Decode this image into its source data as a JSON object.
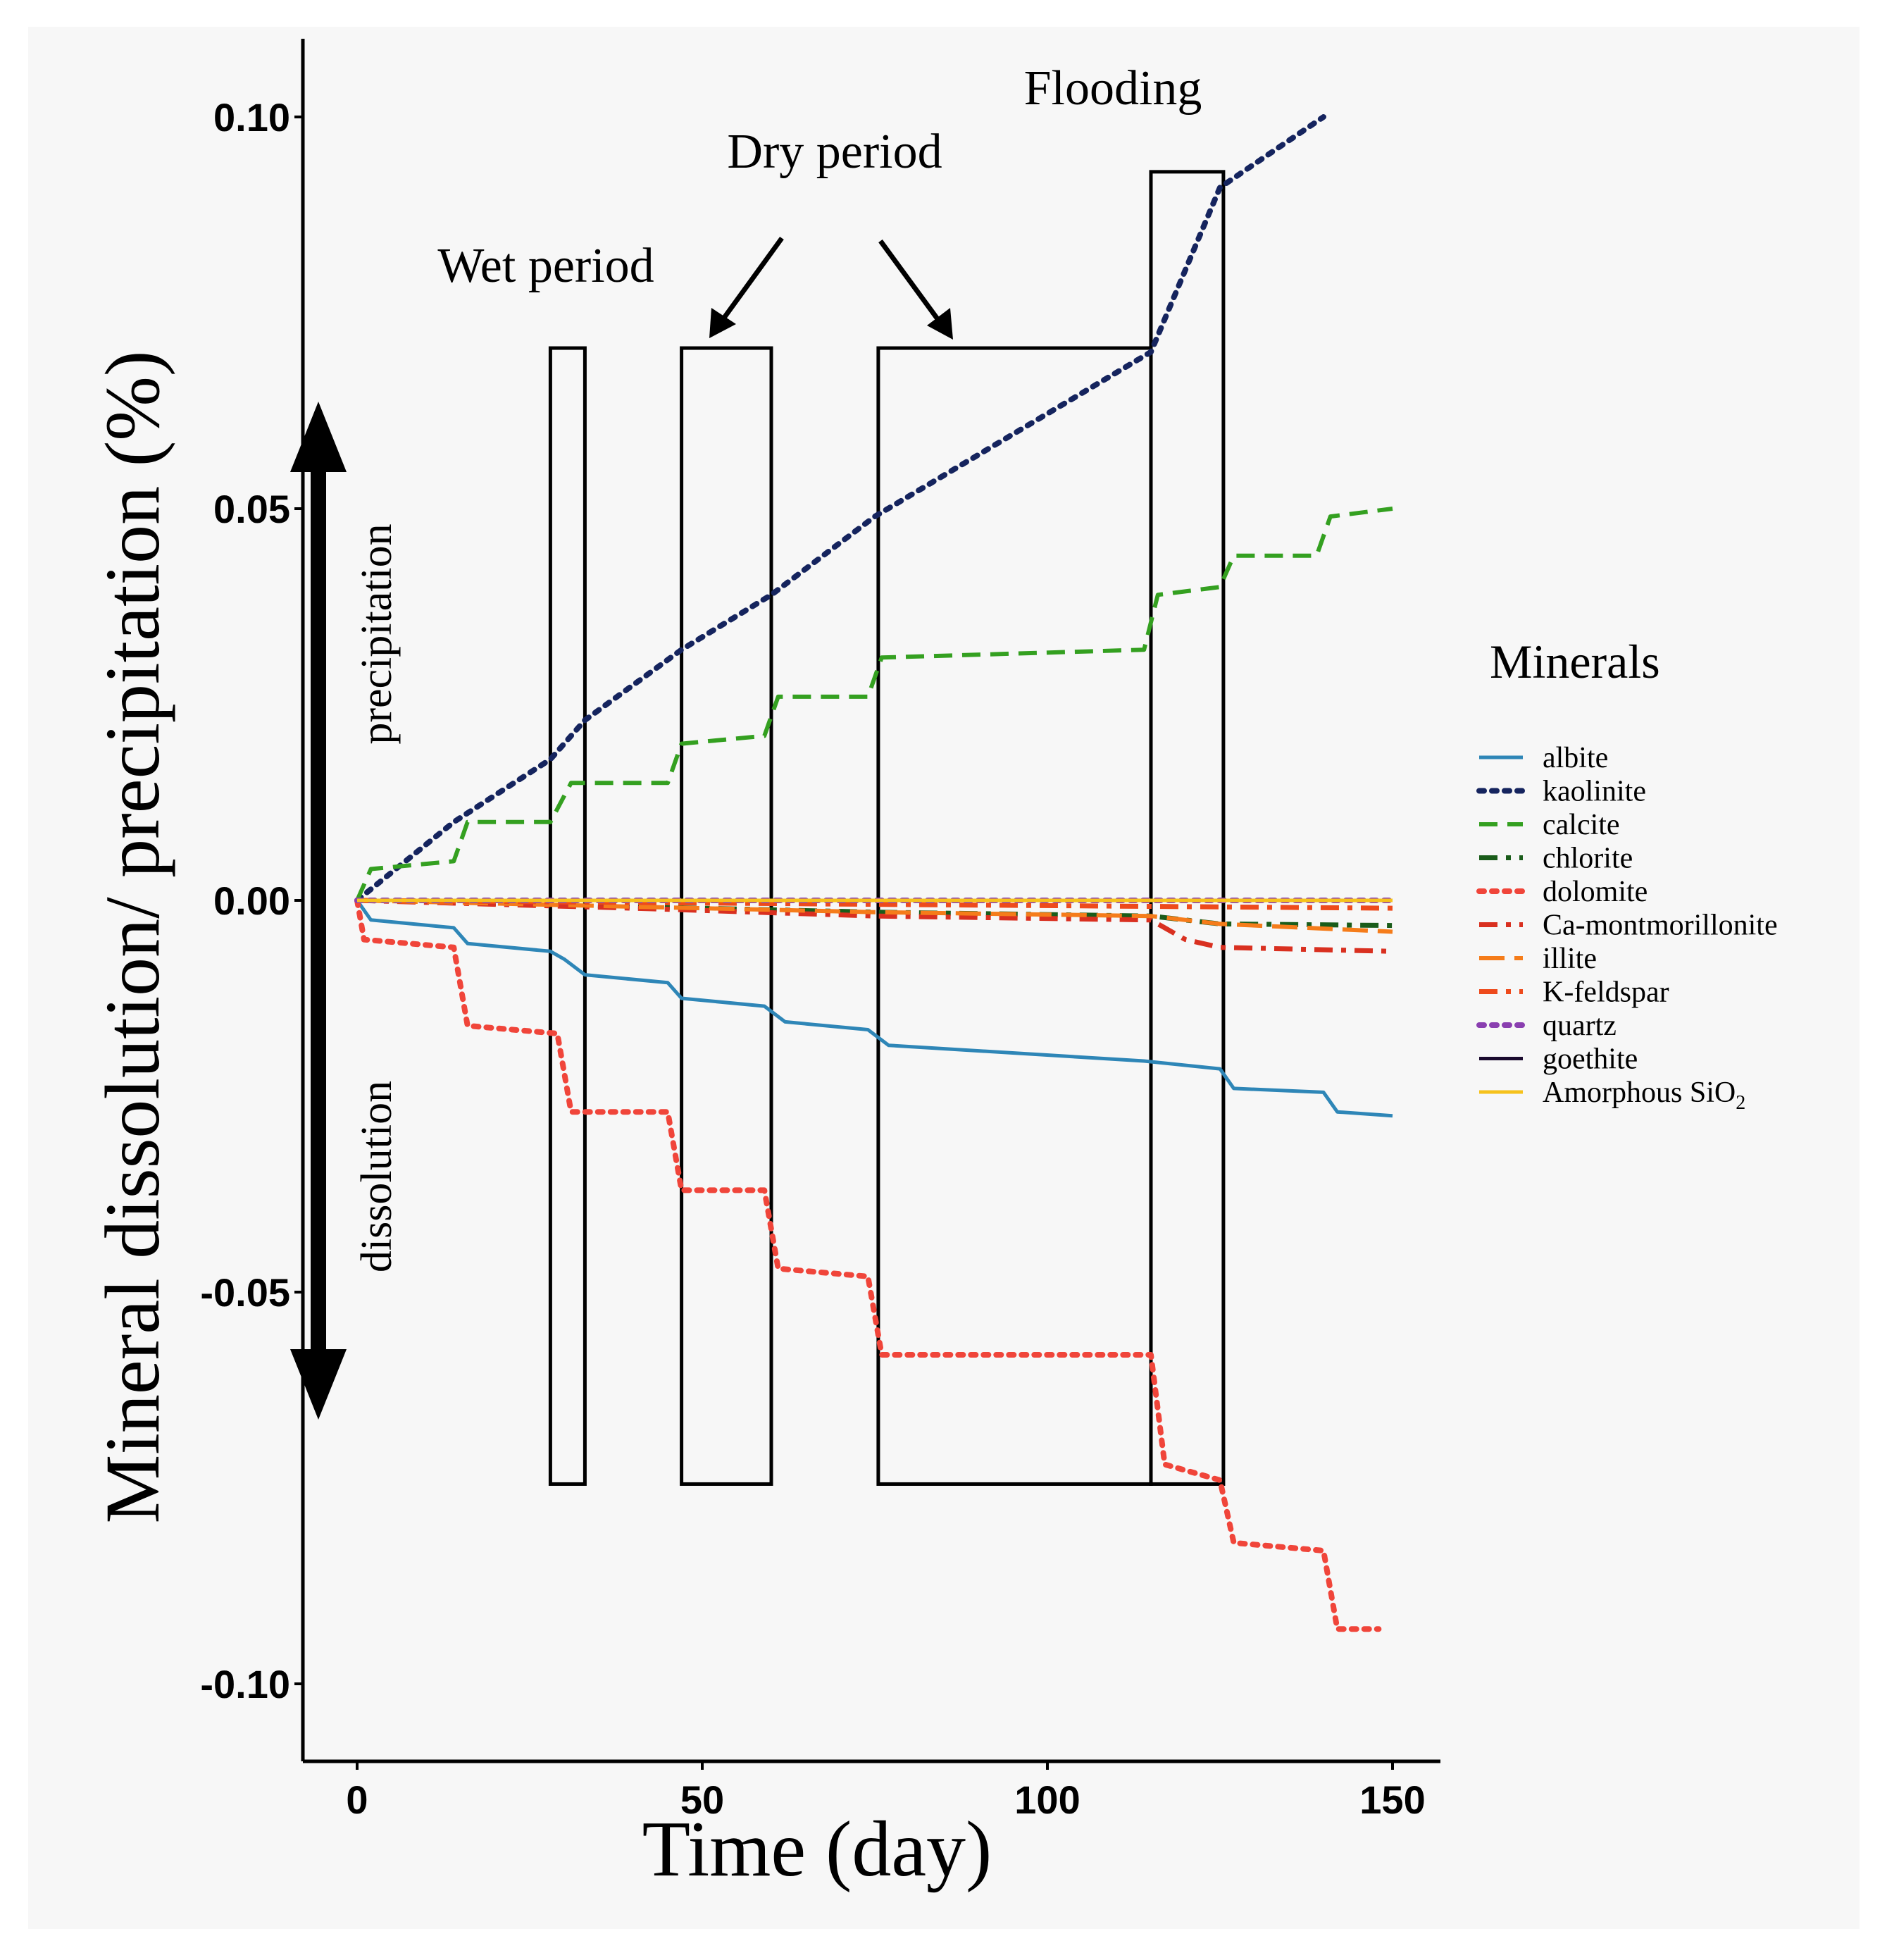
{
  "chart_data": {
    "type": "line",
    "xlabel": "Time (day)",
    "ylabel": "Mineral dissolution/ precipitation (%)",
    "xlim": [
      -7.5,
      157
    ],
    "ylim": [
      -0.11,
      0.11
    ],
    "x_ticks": [
      0,
      50,
      100,
      150
    ],
    "x_tick_labels": [
      "0",
      "50",
      "100",
      "150"
    ],
    "y_ticks": [
      0.1,
      0.05,
      0.0,
      -0.05,
      -0.1
    ],
    "y_tick_labels": [
      "0.10",
      "0.05",
      "0.00",
      "-0.05",
      "-0.10"
    ],
    "legend_title": "Minerals",
    "legend_position": "right",
    "annotations": {
      "precipitation": "precipitation",
      "dissolution": "dissolution",
      "wet_period": "Wet period",
      "dry_period": "Dry period",
      "flooding": "Flooding"
    },
    "periods": [
      {
        "x0": 28,
        "x1": 33,
        "y0": -0.0745,
        "y1": 0.0705
      },
      {
        "x0": 47,
        "x1": 60,
        "y0": -0.0745,
        "y1": 0.0705
      },
      {
        "x0": 75.5,
        "x1": 115,
        "y0": -0.0745,
        "y1": 0.0705
      },
      {
        "x0": 115,
        "x1": 125.5,
        "y0": -0.0745,
        "y1": 0.093
      }
    ],
    "series": [
      {
        "name": "albite",
        "label": "albite",
        "color": "#2e86b7",
        "dash": "solid",
        "x": [
          0,
          2,
          14,
          16,
          28,
          30,
          33,
          45,
          47,
          59,
          62,
          74,
          77,
          114,
          125,
          127,
          140,
          142,
          150
        ],
        "y": [
          0,
          -0.0025,
          -0.0035,
          -0.0055,
          -0.0065,
          -0.0075,
          -0.0095,
          -0.0105,
          -0.0125,
          -0.0135,
          -0.0155,
          -0.0165,
          -0.0185,
          -0.0205,
          -0.0215,
          -0.024,
          -0.0245,
          -0.027,
          -0.0275
        ]
      },
      {
        "name": "kaolinite",
        "label": "kaolinite",
        "color": "#15245e",
        "dash": "dots",
        "x": [
          0,
          14,
          28,
          33,
          47,
          60,
          75,
          115,
          125,
          140
        ],
        "y": [
          0,
          0.01,
          0.018,
          0.023,
          0.032,
          0.039,
          0.049,
          0.07,
          0.091,
          0.1
        ]
      },
      {
        "name": "calcite",
        "label": "calcite",
        "color": "#34a020",
        "dash": "dash",
        "x": [
          0,
          2,
          14,
          16,
          28,
          31,
          45,
          47,
          59,
          61,
          74,
          76,
          114,
          116,
          125,
          127,
          139,
          141,
          150
        ],
        "y": [
          0,
          0.004,
          0.005,
          0.01,
          0.01,
          0.015,
          0.015,
          0.02,
          0.021,
          0.026,
          0.026,
          0.031,
          0.032,
          0.039,
          0.04,
          0.044,
          0.044,
          0.049,
          0.05
        ]
      },
      {
        "name": "chlorite",
        "label": "chlorite",
        "color": "#1a5c1a",
        "dash": "dashdot",
        "x": [
          0,
          40,
          75,
          115,
          125,
          150
        ],
        "y": [
          0,
          -0.0008,
          -0.0015,
          -0.002,
          -0.003,
          -0.0032
        ]
      },
      {
        "name": "dolomite",
        "label": "dolomite",
        "color": "#f0453a",
        "dash": "dots",
        "x": [
          0,
          1,
          14,
          16,
          29,
          31,
          45,
          47,
          59,
          61,
          74,
          76,
          115,
          117,
          125,
          127,
          140,
          142,
          148
        ],
        "y": [
          0,
          -0.005,
          -0.006,
          -0.016,
          -0.017,
          -0.027,
          -0.027,
          -0.037,
          -0.037,
          -0.047,
          -0.048,
          -0.058,
          -0.058,
          -0.072,
          -0.074,
          -0.082,
          -0.083,
          -0.093,
          -0.093
        ]
      },
      {
        "name": "Ca-montmorillonite",
        "label": "Ca-montmorillonite",
        "color": "#d93020",
        "dash": "dashdot",
        "x": [
          0,
          40,
          75,
          115,
          120,
          125,
          150
        ],
        "y": [
          0,
          -0.001,
          -0.002,
          -0.0025,
          -0.005,
          -0.006,
          -0.0065
        ]
      },
      {
        "name": "illite",
        "label": "illite",
        "color": "#f57c1a",
        "dash": "longdash",
        "x": [
          0,
          40,
          75,
          115,
          125,
          150
        ],
        "y": [
          0,
          -0.0008,
          -0.0015,
          -0.002,
          -0.003,
          -0.004
        ]
      },
      {
        "name": "K-feldspar",
        "label": "K-feldspar",
        "color": "#ee4a1c",
        "dash": "dashdot",
        "x": [
          0,
          75,
          150
        ],
        "y": [
          0,
          -0.0005,
          -0.001
        ]
      },
      {
        "name": "quartz",
        "label": "quartz",
        "color": "#8a3fb0",
        "dash": "dots",
        "x": [
          0,
          150
        ],
        "y": [
          0,
          0
        ]
      },
      {
        "name": "goethite",
        "label": "goethite",
        "color": "#1a0a2e",
        "dash": "solid",
        "x": [
          0,
          150
        ],
        "y": [
          0,
          0
        ]
      },
      {
        "name": "Amorphous SiO2",
        "label": "Amorphous SiO",
        "label_sub": "2",
        "color": "#f6c21c",
        "dash": "solid",
        "x": [
          0,
          150
        ],
        "y": [
          0,
          0
        ]
      }
    ]
  }
}
